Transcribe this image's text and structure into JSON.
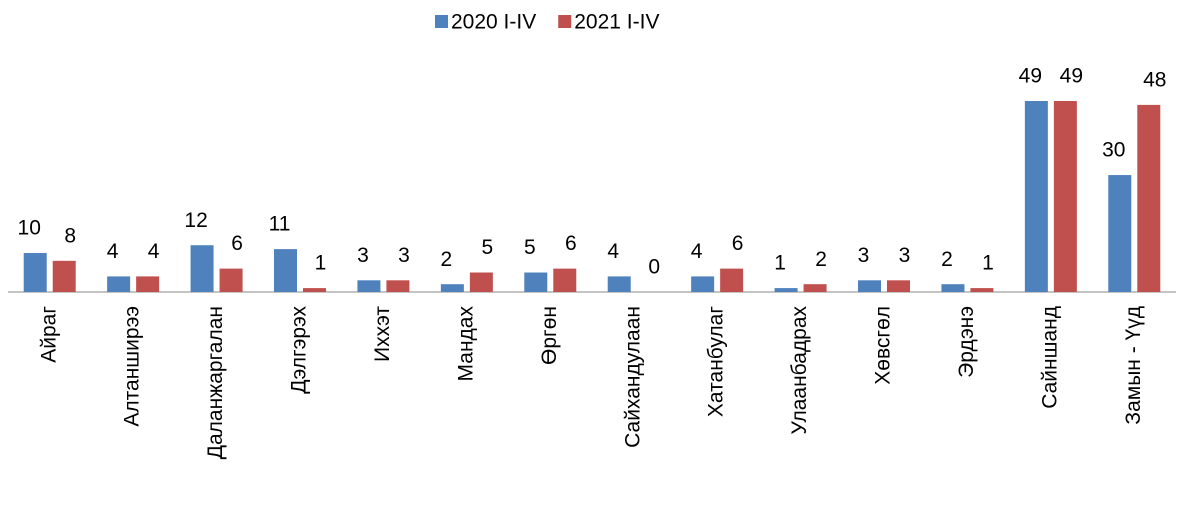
{
  "chart_data": {
    "type": "bar",
    "categories": [
      "Айраг",
      "Алтанширээ",
      "Даланжаргалан",
      "Дэлгэрэх",
      "Иххэт",
      "Мандах",
      "Өргөн",
      "Сайхандулаан",
      "Хатанбулаг",
      "Улаанбадрах",
      "Хөвсгөл",
      "Эрдэнэ",
      "Сайншанд",
      "Замын - Үүд"
    ],
    "series": [
      {
        "name": "2020 I-IV",
        "color": "#4f81bd",
        "values": [
          10,
          4,
          12,
          11,
          3,
          2,
          5,
          4,
          4,
          1,
          3,
          2,
          49,
          30
        ]
      },
      {
        "name": "2021 I-IV",
        "color": "#c0504d",
        "values": [
          8,
          4,
          6,
          1,
          3,
          5,
          6,
          0,
          6,
          2,
          3,
          1,
          49,
          48
        ]
      }
    ],
    "legend": "top"
  }
}
